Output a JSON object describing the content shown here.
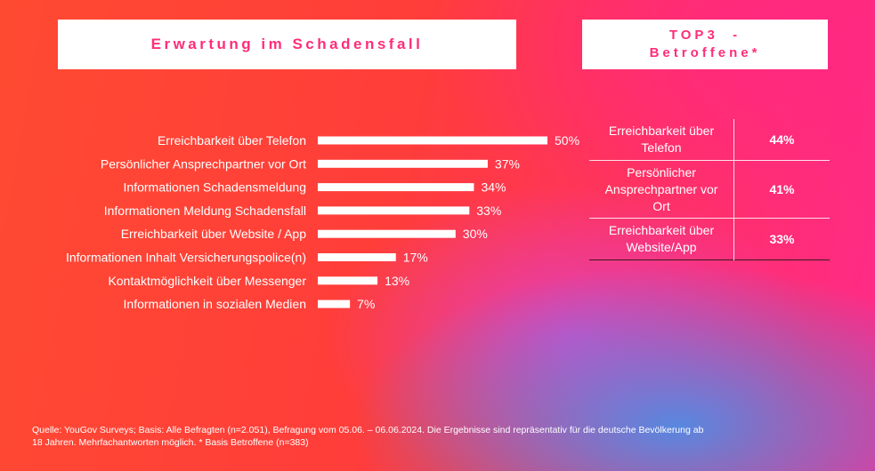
{
  "title": "Erwartung im Schadensfall",
  "top3": {
    "line1": "TOP3  -",
    "line2": "Betroffene*"
  },
  "chart_data": {
    "type": "bar",
    "orientation": "horizontal",
    "categories": [
      "Erreichbarkeit über Telefon",
      "Persönlicher Ansprechpartner vor Ort",
      "Informationen Schadensmeldung",
      "Informationen Meldung Schadensfall",
      "Erreichbarkeit über Website / App",
      "Informationen Inhalt Versicherungspolice(n)",
      "Kontaktmöglichkeit über Messenger",
      "Informationen in sozialen Medien"
    ],
    "values": [
      50,
      37,
      34,
      33,
      30,
      17,
      13,
      7
    ],
    "value_labels": [
      "50%",
      "37%",
      "34%",
      "33%",
      "30%",
      "17%",
      "13%",
      "7%"
    ],
    "unit": "%",
    "xlim": [
      0,
      50
    ],
    "grid": false
  },
  "top3_table": {
    "rows": [
      {
        "label_lines": [
          "Erreichbarkeit über",
          "Telefon"
        ],
        "value": "44%"
      },
      {
        "label_lines": [
          "Persönlicher",
          "Ansprechpartner vor",
          "Ort"
        ],
        "value": "41%"
      },
      {
        "label_lines": [
          "Erreichbarkeit über",
          "Website/App"
        ],
        "value": "33%"
      }
    ]
  },
  "source": {
    "line1": "Quelle: YouGov Surveys; Basis: Alle Befragten (n=2.051), Befragung vom 05.06. – 06.06.2024. Die Ergebnisse sind repräsentativ für die deutsche Bevölkerung ab",
    "line2": "18 Jahren. Mehrfachantworten möglich. * Basis Betroffene (n=383)"
  }
}
